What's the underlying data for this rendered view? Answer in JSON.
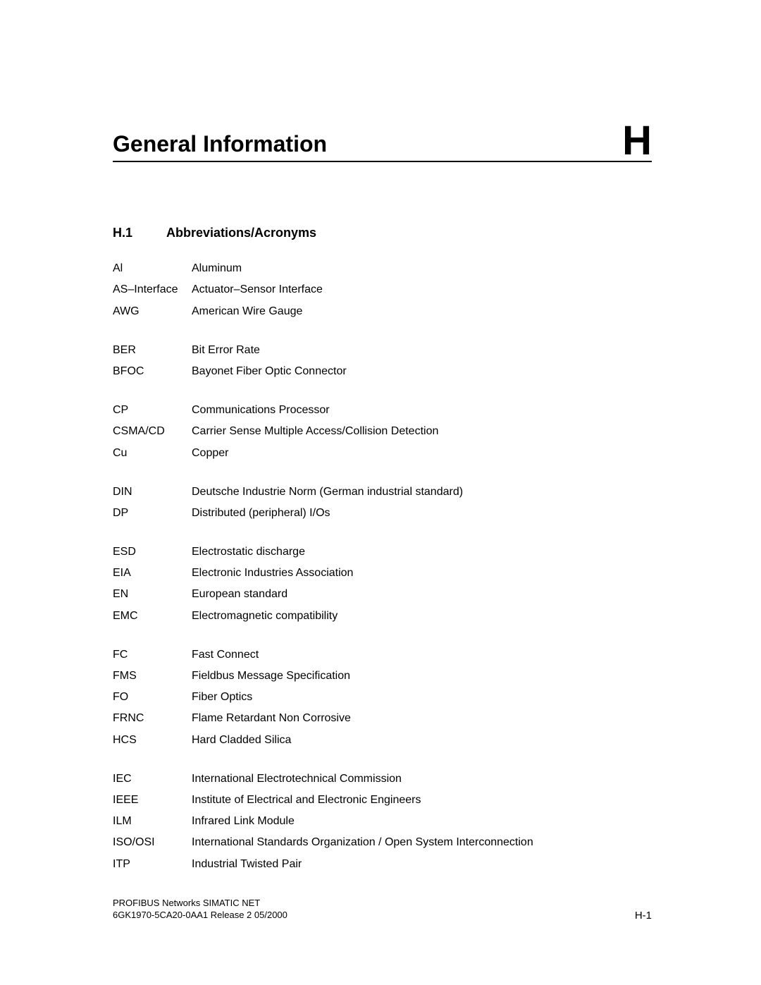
{
  "title": "General Information",
  "chapter_letter": "H",
  "section": {
    "number": "H.1",
    "name": "Abbreviations/Acronyms"
  },
  "groups": [
    [
      {
        "abbr": "Al",
        "def": "Aluminum"
      },
      {
        "abbr": "AS–Interface",
        "def": "Actuator–Sensor Interface"
      },
      {
        "abbr": "AWG",
        "def": "American Wire Gauge"
      }
    ],
    [
      {
        "abbr": "BER",
        "def": "Bit Error Rate"
      },
      {
        "abbr": "BFOC",
        "def": "Bayonet Fiber Optic Connector"
      }
    ],
    [
      {
        "abbr": "CP",
        "def": "Communications Processor"
      },
      {
        "abbr": "CSMA/CD",
        "def": "Carrier Sense Multiple Access/Collision Detection"
      },
      {
        "abbr": "Cu",
        "def": "Copper"
      }
    ],
    [
      {
        "abbr": "DIN",
        "def": "Deutsche Industrie Norm (German industrial standard)"
      },
      {
        "abbr": "DP",
        "def": "Distributed (peripheral) I/Os"
      }
    ],
    [
      {
        "abbr": "ESD",
        "def": "Electrostatic discharge"
      },
      {
        "abbr": "EIA",
        "def": "Electronic Industries Association"
      },
      {
        "abbr": "EN",
        "def": "European standard"
      },
      {
        "abbr": "EMC",
        "def": "Electromagnetic compatibility"
      }
    ],
    [
      {
        "abbr": "FC",
        "def": "Fast Connect"
      },
      {
        "abbr": "FMS",
        "def": "Fieldbus Message Specification"
      },
      {
        "abbr": "FO",
        "def": "Fiber Optics"
      },
      {
        "abbr": "FRNC",
        "def": "Flame Retardant Non Corrosive"
      },
      {
        "abbr": "HCS",
        "def": "Hard Cladded Silica"
      }
    ],
    [
      {
        "abbr": "IEC",
        "def": "International Electrotechnical Commission"
      },
      {
        "abbr": "IEEE",
        "def": "Institute of Electrical and Electronic Engineers"
      },
      {
        "abbr": "ILM",
        "def": "Infrared Link Module"
      },
      {
        "abbr": "ISO/OSI",
        "def": "International Standards Organization / Open System Interconnection"
      },
      {
        "abbr": "ITP",
        "def": "Industrial Twisted Pair"
      }
    ]
  ],
  "footer": {
    "line1": "PROFIBUS Networks SIMATIC NET",
    "line2": "6GK1970-5CA20-0AA1 Release 2 05/2000",
    "page_no": "H-1"
  },
  "style": {
    "page_bg": "#ffffff",
    "text_color": "#000000",
    "title_fontsize": 32,
    "chapter_letter_fontsize": 58,
    "section_head_fontsize": 18,
    "body_fontsize": 16,
    "footer_fontsize": 13,
    "abbr_col_width": 112,
    "rule_color": "#000000",
    "rule_width": 2
  }
}
